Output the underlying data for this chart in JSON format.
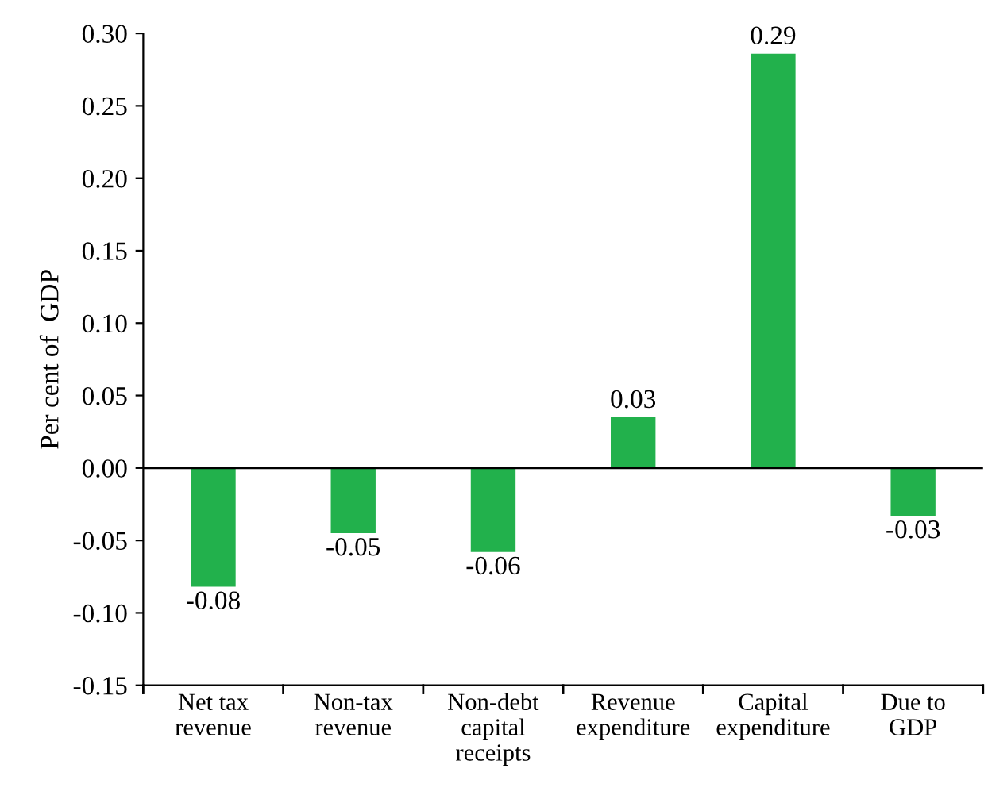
{
  "chart_data": {
    "type": "bar",
    "ylabel": "Per cent of  GDP",
    "categories": [
      "Net tax\nrevenue",
      "Non-tax\nrevenue",
      "Non-debt\ncapital\nreceipts",
      "Revenue\nexpenditure",
      "Capital\nexpenditure",
      "Due to\nGDP"
    ],
    "values": [
      -0.082,
      -0.045,
      -0.058,
      0.035,
      0.286,
      -0.033
    ],
    "value_labels": [
      "-0.08",
      "-0.05",
      "-0.06",
      "0.03",
      "0.29",
      "-0.03"
    ],
    "color": "#22b14c",
    "ylim": [
      -0.15,
      0.3
    ],
    "yticks": [
      {
        "value": -0.15,
        "label": "-0.15"
      },
      {
        "value": -0.1,
        "label": "-0.10"
      },
      {
        "value": -0.05,
        "label": "-0.05"
      },
      {
        "value": 0,
        "label": "0.00"
      },
      {
        "value": 0.05,
        "label": "0.05"
      },
      {
        "value": 0.1,
        "label": "0.10"
      },
      {
        "value": 0.15,
        "label": "0.15"
      },
      {
        "value": 0.2,
        "label": "0.20"
      },
      {
        "value": 0.25,
        "label": "0.25"
      },
      {
        "value": 0.3,
        "label": "0.30"
      }
    ],
    "ref_lines": [
      {
        "axis": "y",
        "value": 0,
        "color": "#000000"
      }
    ],
    "grid": false
  }
}
